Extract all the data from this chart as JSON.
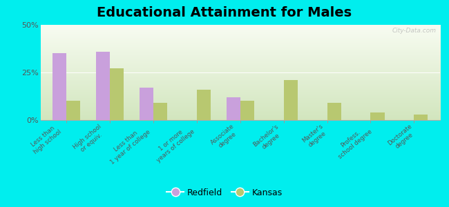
{
  "title": "Educational Attainment for Males",
  "categories": [
    "Less than\nhigh school",
    "High school\nor equiv.",
    "Less than\n1 year of college",
    "1 or more\nyears of college",
    "Associate\ndegree",
    "Bachelor's\ndegree",
    "Master's\ndegree",
    "Profess.\nschool degree",
    "Doctorate\ndegree"
  ],
  "redfield": [
    35,
    36,
    17,
    0,
    12,
    0,
    0,
    0,
    0
  ],
  "kansas": [
    10,
    27,
    9,
    16,
    10,
    21,
    9,
    4,
    3
  ],
  "redfield_color": "#c9a0dc",
  "kansas_color": "#b8c870",
  "bg_top": "#f8faf2",
  "bg_bottom": "#d8e8c0",
  "outer_background": "#00eeee",
  "ylim": [
    0,
    50
  ],
  "yticks": [
    0,
    25,
    50
  ],
  "ytick_labels": [
    "0%",
    "25%",
    "50%"
  ],
  "title_fontsize": 14,
  "legend_labels": [
    "Redfield",
    "Kansas"
  ]
}
